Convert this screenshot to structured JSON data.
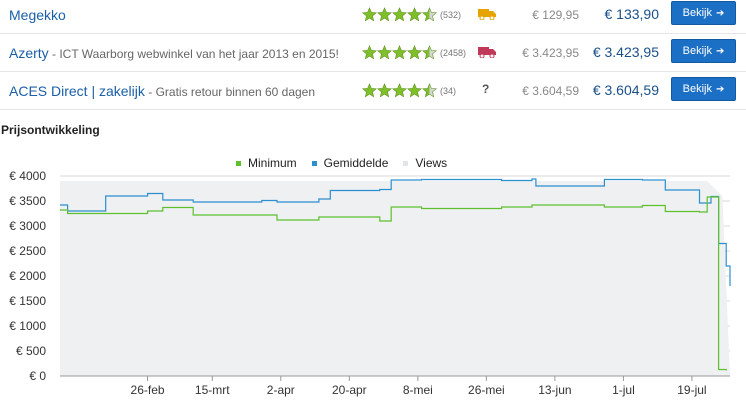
{
  "shops": [
    {
      "name": "Megekko",
      "description": "",
      "rating": 4.5,
      "reviews": "(532)",
      "shipping_icon": "truck-icon",
      "shipping_color": "#e5a400",
      "shipping_price": "€ 129,95",
      "total_price": "€ 133,90",
      "button_label": "Bekijk"
    },
    {
      "name": "Azerty",
      "description": " - ICT Waarborg webwinkel van het jaar 2013 en 2015!",
      "rating": 4.5,
      "reviews": "(2458)",
      "shipping_icon": "truck-icon",
      "shipping_color": "#c0395a",
      "shipping_price": "€ 3.423,95",
      "total_price": "€ 3.423,95",
      "button_label": "Bekijk"
    },
    {
      "name": "ACES Direct | zakelijk",
      "description": " - Gratis retour binnen 60 dagen",
      "rating": 4.5,
      "reviews": "(34)",
      "shipping_icon": "question-mark",
      "shipping_text": "?",
      "shipping_price": "€ 3.604,59",
      "total_price": "€ 3.604,59",
      "button_label": "Bekijk"
    }
  ],
  "section_title": "Prijsontwikkeling",
  "colors": {
    "star": "#7fbf2a",
    "minimum": "#5dc02c",
    "average": "#2b8fd0",
    "views": "#e1e5e8",
    "button": "#1b6fc4",
    "link": "#1a5fa8"
  },
  "chart_data": {
    "type": "line",
    "legend": [
      "Minimum",
      "Gemiddelde",
      "Views"
    ],
    "legend_position": "top-center",
    "y_ticks": [
      "€ 0",
      "€ 500",
      "€ 1000",
      "€ 1500",
      "€ 2000",
      "€ 2500",
      "€ 3000",
      "€ 3500",
      "€ 4000"
    ],
    "ylim": [
      0,
      4000
    ],
    "x_ticks": [
      "26-feb",
      "15-mrt",
      "2-apr",
      "20-apr",
      "8-mei",
      "26-mei",
      "13-jun",
      "1-jul",
      "19-jul"
    ],
    "grid": "horizontal",
    "series": [
      {
        "name": "Minimum",
        "x": [
          "2015-02-03",
          "2015-02-05",
          "2015-02-15",
          "2015-02-26",
          "2015-03-02",
          "2015-03-10",
          "2015-03-28",
          "2015-04-01",
          "2015-04-12",
          "2015-04-28",
          "2015-05-01",
          "2015-05-09",
          "2015-05-30",
          "2015-06-07",
          "2015-06-26",
          "2015-07-06",
          "2015-07-12",
          "2015-07-21",
          "2015-07-23",
          "2015-07-26",
          "2015-07-28"
        ],
        "values": [
          3320,
          3250,
          3250,
          3300,
          3370,
          3220,
          3220,
          3120,
          3180,
          3100,
          3380,
          3350,
          3380,
          3420,
          3380,
          3410,
          3290,
          3280,
          3580,
          130,
          110
        ]
      },
      {
        "name": "Gemiddelde",
        "x": [
          "2015-02-03",
          "2015-02-05",
          "2015-02-15",
          "2015-02-26",
          "2015-03-02",
          "2015-03-10",
          "2015-03-28",
          "2015-04-01",
          "2015-04-12",
          "2015-04-15",
          "2015-04-28",
          "2015-05-01",
          "2015-05-09",
          "2015-05-30",
          "2015-06-07",
          "2015-06-08",
          "2015-06-26",
          "2015-07-06",
          "2015-07-12",
          "2015-07-21",
          "2015-07-24",
          "2015-07-26",
          "2015-07-28",
          "2015-07-29"
        ],
        "values": [
          3420,
          3300,
          3600,
          3650,
          3520,
          3480,
          3510,
          3480,
          3540,
          3710,
          3730,
          3920,
          3930,
          3910,
          3940,
          3800,
          3930,
          3920,
          3720,
          3460,
          3590,
          2650,
          2200,
          1800
        ]
      },
      {
        "name": "Views",
        "x": [
          "2015-02-03",
          "2015-07-23",
          "2015-07-27",
          "2015-07-29"
        ],
        "values": [
          3900,
          3900,
          3600,
          0
        ]
      }
    ]
  }
}
